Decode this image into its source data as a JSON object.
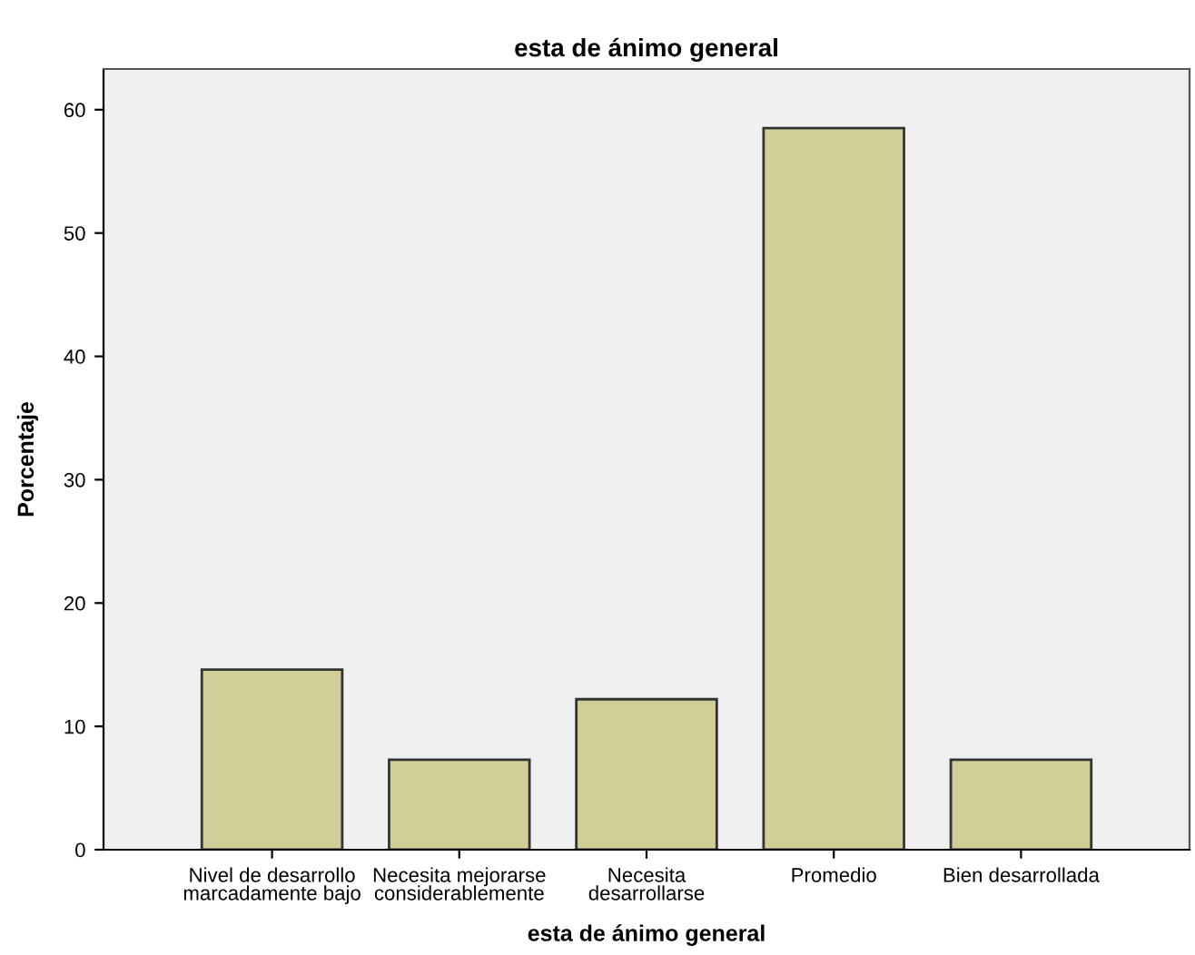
{
  "chart_data": {
    "type": "bar",
    "title": "esta de ánimo general",
    "xlabel": "esta de ánimo general",
    "ylabel": "Porcentaje",
    "categories": [
      "Nivel de desarrollo\nmarcadamente bajo",
      "Necesita mejorarse\nconsiderablemente",
      "Necesita\ndesarrollarse",
      "Promedio",
      "Bien desarrollada"
    ],
    "values": [
      14.6,
      7.3,
      12.2,
      58.5,
      7.3
    ],
    "color": "#d2ce98",
    "ylim": [
      0,
      63.3
    ],
    "yticks": [
      0,
      10,
      20,
      30,
      40,
      50,
      60
    ],
    "grid": false
  }
}
